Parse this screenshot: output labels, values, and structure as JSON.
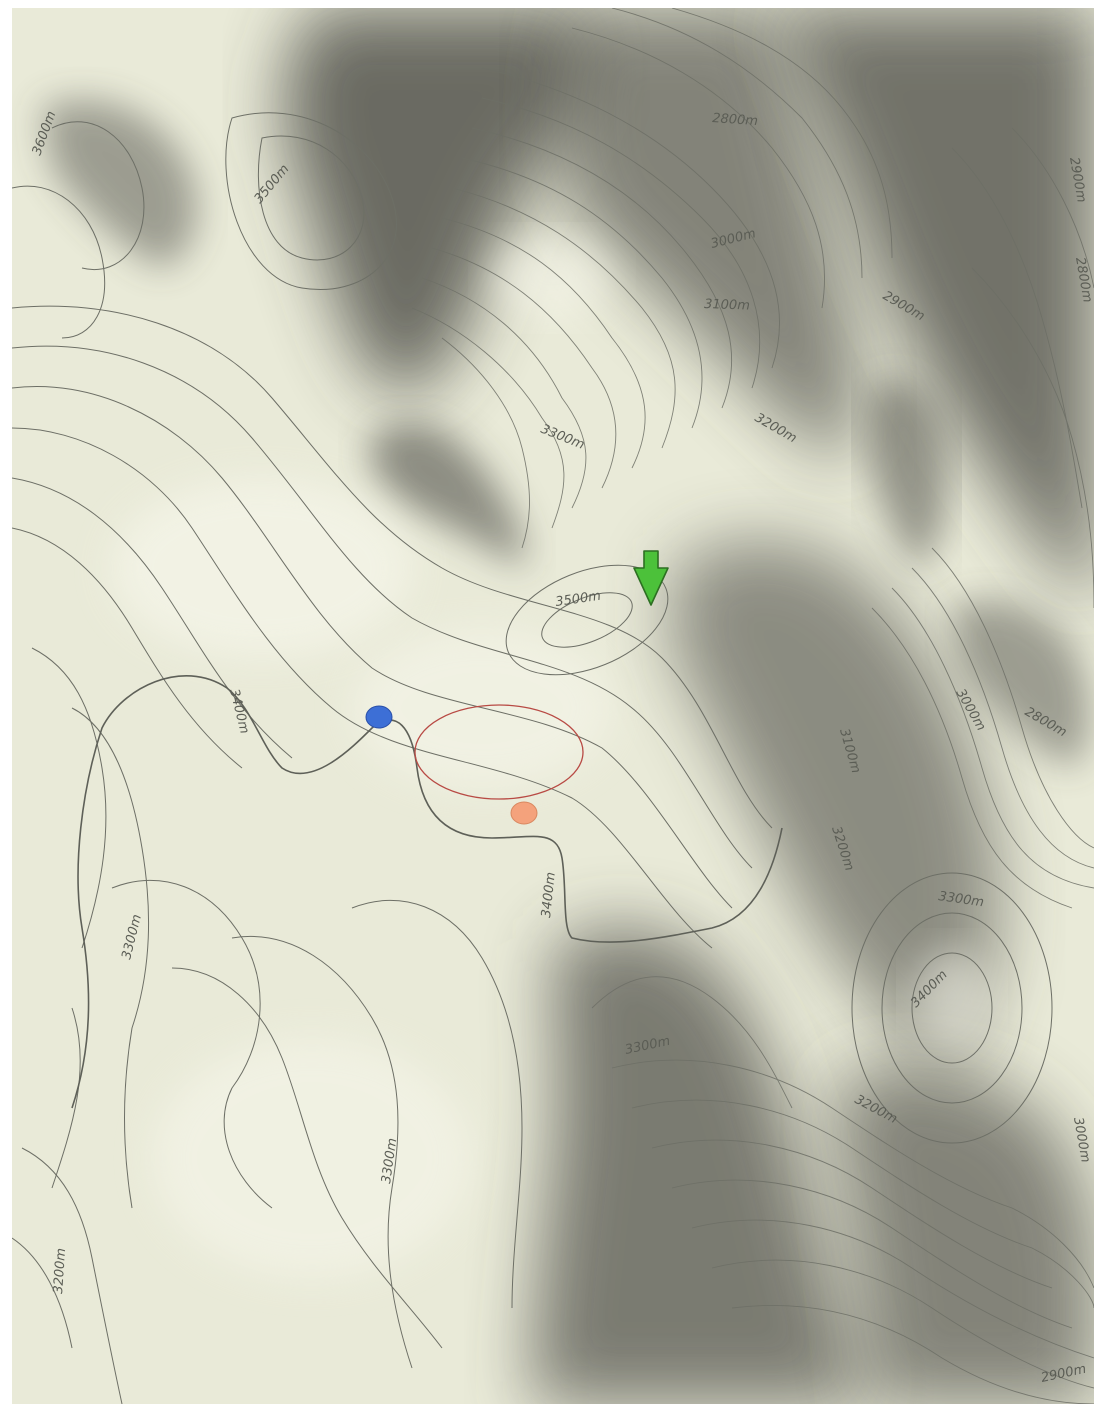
{
  "map": {
    "colors": {
      "base": "#e9ead8",
      "shadow": "#3f413a",
      "contour": "#6d6f66",
      "contour_major": "#5e6058",
      "label": "#5b5d55",
      "marker_blue": "#3d6fd6",
      "marker_orange": "#f4a27c",
      "ellipse": "#b84a44",
      "arrow": "#4cc13a"
    },
    "contour_labels": [
      {
        "id": "l2800a",
        "text": "2800m"
      },
      {
        "id": "l2900a",
        "text": "2900m"
      },
      {
        "id": "l3000a",
        "text": "3000m"
      },
      {
        "id": "l3100a",
        "text": "3100m"
      },
      {
        "id": "l3200a",
        "text": "3200m"
      },
      {
        "id": "l3300a",
        "text": "3300m"
      },
      {
        "id": "l3500a",
        "text": "3500m"
      },
      {
        "id": "l3500b",
        "text": "3500m"
      },
      {
        "id": "l3600a",
        "text": "3600m"
      },
      {
        "id": "l3400a",
        "text": "3400m"
      },
      {
        "id": "l3400b",
        "text": "3400m"
      },
      {
        "id": "l3400c",
        "text": "3400m"
      },
      {
        "id": "l3300b",
        "text": "3300m"
      },
      {
        "id": "l3300c",
        "text": "3300m"
      },
      {
        "id": "l3300d",
        "text": "3300m"
      },
      {
        "id": "l3300e",
        "text": "3300m"
      },
      {
        "id": "l3200b",
        "text": "3200m"
      },
      {
        "id": "l3200c",
        "text": "3200m"
      },
      {
        "id": "l3200d",
        "text": "3200m"
      },
      {
        "id": "l3100b",
        "text": "3100m"
      },
      {
        "id": "l3000b",
        "text": "3000m"
      },
      {
        "id": "l2900b",
        "text": "2900m"
      },
      {
        "id": "l2800b",
        "text": "2800m"
      },
      {
        "id": "l2800c",
        "text": "2800m"
      },
      {
        "id": "l2900c",
        "text": "2900m"
      },
      {
        "id": "l3000c",
        "text": "3000m"
      }
    ],
    "markers": {
      "blue": {
        "icon": "blue-dot-icon"
      },
      "orange": {
        "icon": "orange-dot-icon"
      },
      "area": {
        "icon": "ellipse-outline-icon"
      },
      "arrow": {
        "icon": "green-down-arrow-icon"
      }
    }
  }
}
